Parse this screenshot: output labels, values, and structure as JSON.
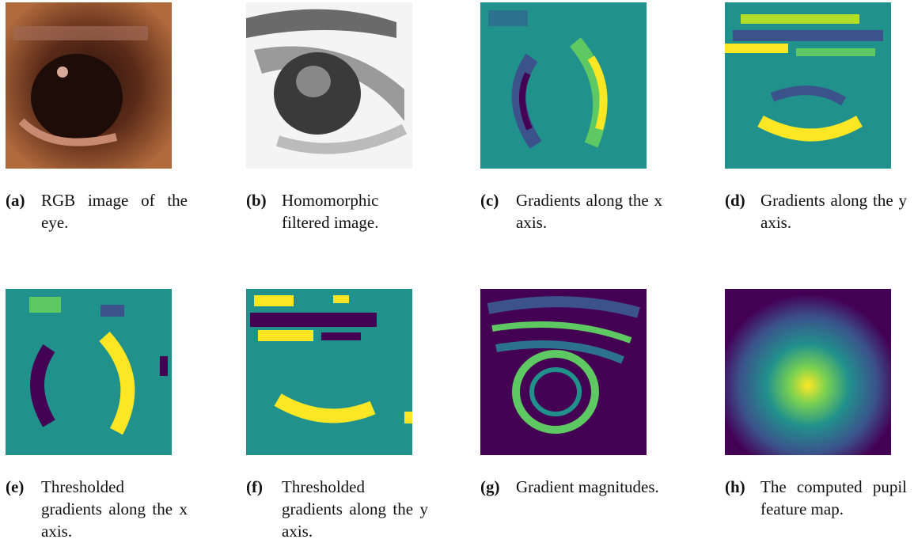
{
  "subfigures": [
    {
      "label": "(a)",
      "caption": "RGB image of the eye."
    },
    {
      "label": "(b)",
      "caption": "Homomorphic filtered image."
    },
    {
      "label": "(c)",
      "caption": "Gradients along the x axis."
    },
    {
      "label": "(d)",
      "caption": "Gradients along the y axis."
    },
    {
      "label": "(e)",
      "caption": "Thresholded gradients along the x axis."
    },
    {
      "label": "(f)",
      "caption": "Thresholded gradients along the y axis."
    },
    {
      "label": "(g)",
      "caption": "Gradient magnitudes."
    },
    {
      "label": "(h)",
      "caption": "The computed pupil feature map."
    }
  ]
}
